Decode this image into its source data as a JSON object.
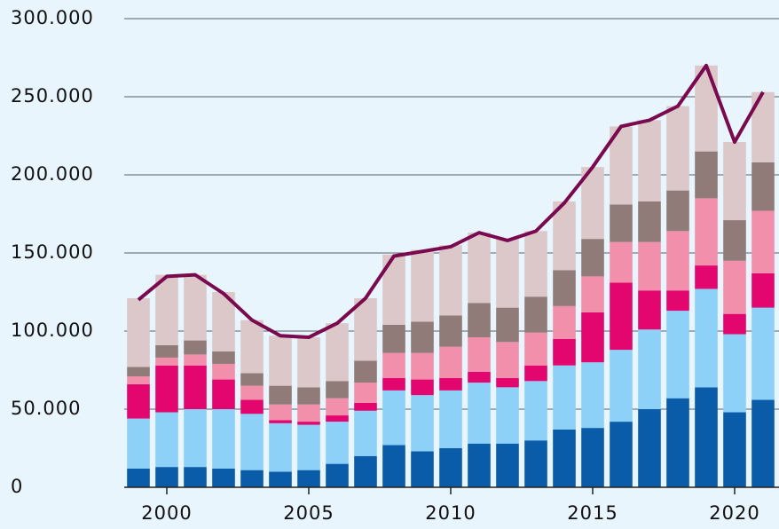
{
  "chart_data": {
    "type": "bar",
    "stacked": true,
    "x": [
      1999,
      2000,
      2001,
      2002,
      2003,
      2004,
      2005,
      2006,
      2007,
      2008,
      2009,
      2010,
      2011,
      2012,
      2013,
      2014,
      2015,
      2016,
      2017,
      2018,
      2019,
      2020,
      2021
    ],
    "xlim": [
      1998.5,
      2021.5
    ],
    "xticks": [
      2000,
      2005,
      2010,
      2015,
      2020
    ],
    "ylim": [
      0,
      300000
    ],
    "yticks": [
      0,
      {
        "value": 50000,
        "label": "50.000"
      },
      {
        "value": 100000,
        "label": "100.000"
      },
      {
        "value": 150000,
        "label": "150.000"
      },
      {
        "value": 200000,
        "label": "200.000"
      },
      {
        "value": 250000,
        "label": "250.000"
      },
      {
        "value": 300000,
        "label": "300.000"
      }
    ],
    "grid": true,
    "series": [
      {
        "color": "#0a5ca8",
        "values": [
          12000,
          13000,
          13000,
          12000,
          11000,
          10000,
          11000,
          15000,
          20000,
          27000,
          23000,
          25000,
          28000,
          28000,
          30000,
          37000,
          38000,
          42000,
          50000,
          57000,
          64000,
          48000,
          56000
        ]
      },
      {
        "color": "#8dd0f8",
        "values": [
          32000,
          35000,
          37000,
          38000,
          36000,
          31000,
          29000,
          27000,
          29000,
          35000,
          36000,
          37000,
          39000,
          36000,
          38000,
          41000,
          42000,
          46000,
          51000,
          56000,
          63000,
          50000,
          59000
        ]
      },
      {
        "color": "#e2066e",
        "values": [
          22000,
          30000,
          28000,
          19000,
          9000,
          2000,
          2000,
          4000,
          5000,
          8000,
          10000,
          8000,
          7000,
          6000,
          10000,
          17000,
          32000,
          43000,
          25000,
          13000,
          15000,
          13000,
          22000
        ]
      },
      {
        "color": "#f290ab",
        "values": [
          5000,
          5000,
          7000,
          10000,
          9000,
          10000,
          11000,
          11000,
          13000,
          16000,
          17000,
          20000,
          22000,
          23000,
          21000,
          21000,
          23000,
          26000,
          31000,
          38000,
          43000,
          34000,
          40000
        ]
      },
      {
        "color": "#907b78",
        "values": [
          6000,
          8000,
          9000,
          8000,
          8000,
          12000,
          11000,
          11000,
          14000,
          18000,
          20000,
          20000,
          22000,
          22000,
          23000,
          23000,
          24000,
          24000,
          26000,
          26000,
          30000,
          26000,
          31000
        ]
      },
      {
        "color": "#dcc7c9",
        "values": [
          44000,
          45000,
          42000,
          38000,
          34000,
          32000,
          32000,
          37000,
          40000,
          45000,
          46000,
          45000,
          45000,
          44000,
          42000,
          44000,
          46000,
          50000,
          52000,
          54000,
          55000,
          50000,
          45000
        ]
      },
      {
        "type": "line",
        "color": "#7a0a50",
        "values": [
          120000,
          135000,
          136000,
          124000,
          107000,
          97000,
          96000,
          105000,
          121000,
          148000,
          151000,
          154000,
          163000,
          158000,
          164000,
          182000,
          205000,
          231000,
          235000,
          244000,
          270000,
          221000,
          253000
        ]
      }
    ]
  }
}
